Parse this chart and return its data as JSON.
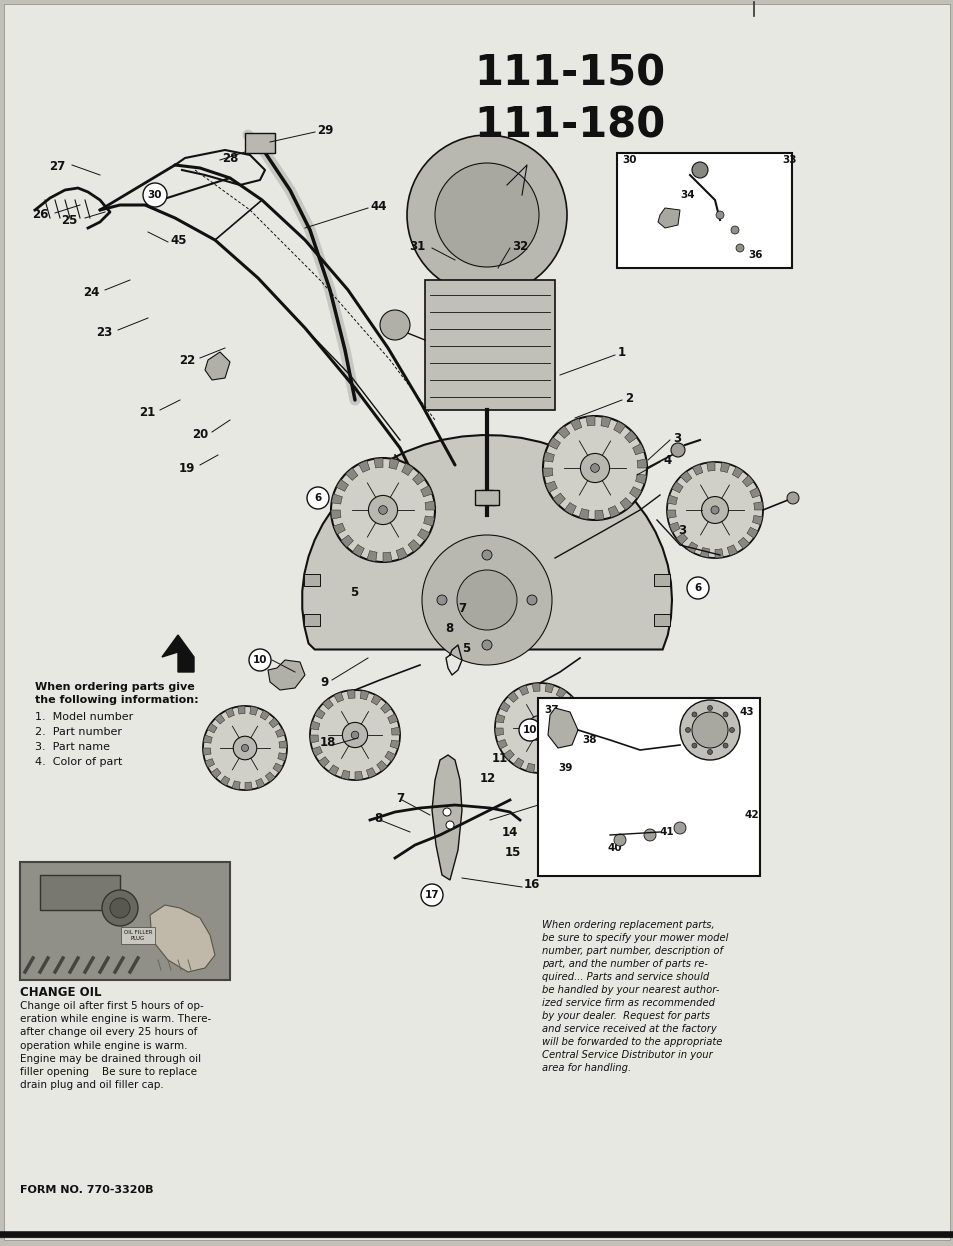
{
  "title1": "111-150",
  "title2": "111-180",
  "background_color": "#d8d8d0",
  "page_bg": "#c8c8be",
  "text_color": "#111111",
  "page_width": 9.54,
  "page_height": 12.46,
  "form_number": "FORM NO. 770-3320B",
  "ordering_info_title": "When ordering parts give\nthe following information:",
  "ordering_info_items": [
    "1.  Model number",
    "2.  Part number",
    "3.  Part name",
    "4.  Color of part"
  ],
  "change_oil_title": "CHANGE OIL",
  "change_oil_text": "Change oil after first 5 hours of op-\neration while engine is warm. There-\nafter change oil every 25 hours of\noperation while engine is warm.\nEngine may be drained through oil\nfiller opening    Be sure to replace\ndrain plug and oil filler cap.",
  "replacement_parts_text": "When ordering replacement parts,\nbe sure to specify your mower model\nnumber, part number, description of\npart, and the number of parts re-\nquired... Parts and service should\nbe handled by your nearest author-\nized service firm as recommended\nby your dealer.  Request for parts\nand service received at the factory\nwill be forwarded to the appropriate\nCentral Service Distributor in your\narea for handling."
}
